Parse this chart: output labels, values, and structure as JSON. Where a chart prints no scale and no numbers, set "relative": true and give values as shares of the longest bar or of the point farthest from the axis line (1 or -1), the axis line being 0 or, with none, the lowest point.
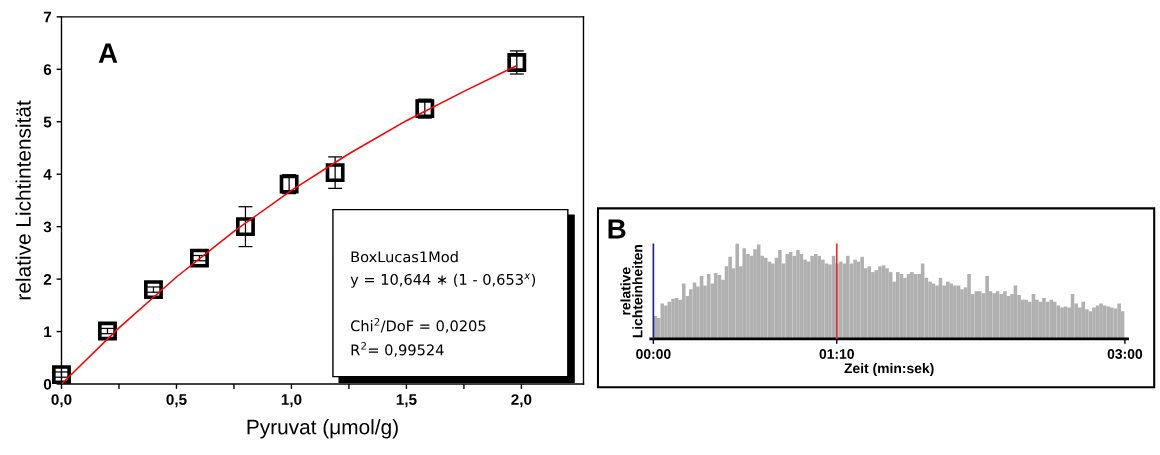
{
  "chart_data": [
    {
      "type": "scatter",
      "title": "A",
      "xlabel": "Pyruvat (μmol/g)",
      "ylabel": "relative Lichtintensität",
      "xlim": [
        0,
        2.27
      ],
      "ylim": [
        0,
        7
      ],
      "xticks": [
        {
          "value": 0,
          "label": "0,0"
        },
        {
          "value": 0.25,
          "label": null
        },
        {
          "value": 0.5,
          "label": "0,5"
        },
        {
          "value": 0.75,
          "label": null
        },
        {
          "value": 1.0,
          "label": "1,0"
        },
        {
          "value": 1.25,
          "label": null
        },
        {
          "value": 1.5,
          "label": "1,5"
        },
        {
          "value": 1.75,
          "label": null
        },
        {
          "value": 2.0,
          "label": "2,0"
        }
      ],
      "yticks": [
        0,
        1,
        2,
        3,
        4,
        5,
        6,
        7
      ],
      "grid": false,
      "annotations": [
        "BoxLucas1Mod",
        "y = 10,644 ∗ (1 - 0,653$^{x}$)",
        "Chi$^{2}$/DoF = 0,0205",
        "R$^{2}$= 0,99524"
      ],
      "series": [
        {
          "type": "scatter",
          "color": "#000000",
          "marker": "square",
          "x": [
            0,
            0.2,
            0.4,
            0.6,
            0.8,
            0.99,
            1.19,
            1.58,
            1.98
          ],
          "values": [
            0.18,
            1.01,
            1.8,
            2.4,
            3.0,
            3.81,
            4.03,
            5.25,
            6.13
          ],
          "errors": [
            0.05,
            0.05,
            0.05,
            0.05,
            0.38,
            0.18,
            0.3,
            0.18,
            0.22
          ]
        },
        {
          "type": "line",
          "color": "#ff0000",
          "marker": "none",
          "line_style": "solid",
          "x": [
            0,
            0.25,
            0.5,
            0.75,
            1.0,
            1.25,
            1.5,
            1.75,
            1.98
          ],
          "values": [
            0,
            1.07,
            2.04,
            2.91,
            3.69,
            4.39,
            5.02,
            5.58,
            6.07
          ]
        }
      ]
    },
    {
      "type": "bar",
      "title": "B",
      "xlabel": "Zeit (min:sek)",
      "ylabel": "relative\nLichteinheiten",
      "relative": true,
      "xlim": [
        -1,
        181
      ],
      "xticks": [
        {
          "value": 0,
          "label": "00:00"
        },
        {
          "value": 70,
          "label": "01:10"
        },
        {
          "value": 180,
          "label": "03:00"
        }
      ],
      "grid": false,
      "ref_lines": [
        {
          "axis": "x",
          "value": 0,
          "label": null,
          "color": "#1f1f9a"
        },
        {
          "axis": "x",
          "value": 70,
          "label": null,
          "color": "#e03030"
        }
      ],
      "series": [
        {
          "color": "#b0b0b0",
          "x": [
            0.7,
            2.0,
            3.4,
            4.8,
            6.1,
            7.5,
            8.9,
            10.2,
            11.6,
            13.0,
            14.3,
            15.7,
            17.0,
            18.4,
            19.7,
            21.1,
            22.5,
            23.8,
            25.2,
            26.6,
            27.9,
            29.3,
            30.6,
            32.0,
            33.4,
            34.7,
            36.1,
            37.5,
            38.8,
            40.2,
            41.5,
            42.9,
            44.3,
            45.6,
            47.0,
            48.3,
            49.7,
            51.1,
            52.4,
            53.8,
            55.2,
            56.5,
            57.9,
            59.2,
            60.6,
            62.0,
            63.3,
            64.7,
            66.1,
            67.4,
            68.8,
            70.1,
            71.5,
            72.9,
            74.2,
            75.6,
            77.0,
            78.3,
            79.7,
            81.0,
            82.4,
            83.8,
            85.1,
            86.5,
            87.9,
            89.2,
            90.6,
            91.9,
            93.3,
            94.7,
            96.0,
            97.4,
            98.7,
            100.1,
            101.5,
            102.8,
            104.2,
            105.6,
            106.9,
            108.3,
            109.6,
            111.0,
            112.4,
            113.7,
            115.1,
            116.5,
            117.8,
            119.2,
            120.5,
            121.9,
            123.3,
            124.6,
            126.0,
            127.4,
            128.7,
            130.1,
            131.4,
            132.8,
            134.2,
            135.5,
            136.9,
            138.2,
            139.6,
            141.0,
            142.3,
            143.7,
            145.1,
            146.4,
            147.8,
            149.1,
            150.5,
            151.9,
            153.2,
            154.6,
            156.0,
            157.3,
            158.7,
            160.0,
            161.4,
            162.8,
            164.1,
            165.5,
            166.9,
            168.2,
            169.6,
            170.9,
            172.3,
            173.7,
            175.0,
            176.4,
            177.8,
            179.1
          ],
          "values": [
            0.24,
            0.22,
            0.37,
            0.35,
            0.39,
            0.42,
            0.43,
            0.41,
            0.58,
            0.45,
            0.52,
            0.59,
            0.55,
            0.66,
            0.56,
            0.68,
            0.58,
            0.69,
            0.67,
            0.62,
            0.76,
            0.86,
            0.74,
            1,
            0.76,
            0.95,
            0.89,
            0.87,
            0.94,
            0.99,
            0.87,
            0.85,
            0.81,
            0.79,
            0.85,
            0.93,
            0.79,
            0.89,
            0.91,
            0.87,
            0.93,
            0.89,
            0.83,
            0.81,
            0.87,
            0.89,
            0.87,
            0.83,
            0.79,
            0.78,
            0.87,
            0.79,
            0.81,
            0.79,
            0.87,
            0.79,
            0.83,
            0.81,
            0.86,
            0.74,
            0.76,
            0.7,
            0.72,
            0.76,
            0.77,
            0.74,
            0.7,
            0.6,
            0.7,
            0.68,
            0.64,
            0.68,
            0.7,
            0.68,
            0.68,
            0.79,
            0.64,
            0.6,
            0.58,
            0.56,
            0.64,
            0.56,
            0.6,
            0.58,
            0.56,
            0.56,
            0.52,
            0.54,
            0.68,
            0.47,
            0.5,
            0.5,
            0.48,
            0.66,
            0.5,
            0.48,
            0.5,
            0.47,
            0.5,
            0.45,
            0.47,
            0.56,
            0.46,
            0.41,
            0.41,
            0.39,
            0.47,
            0.41,
            0.39,
            0.43,
            0.39,
            0.41,
            0.39,
            0.35,
            0.33,
            0.34,
            0.33,
            0.47,
            0.37,
            0.33,
            0.39,
            0.31,
            0.29,
            0.33,
            0.35,
            0.37,
            0.35,
            0.34,
            0.33,
            0.32,
            0.37,
            0.29
          ]
        }
      ]
    }
  ]
}
